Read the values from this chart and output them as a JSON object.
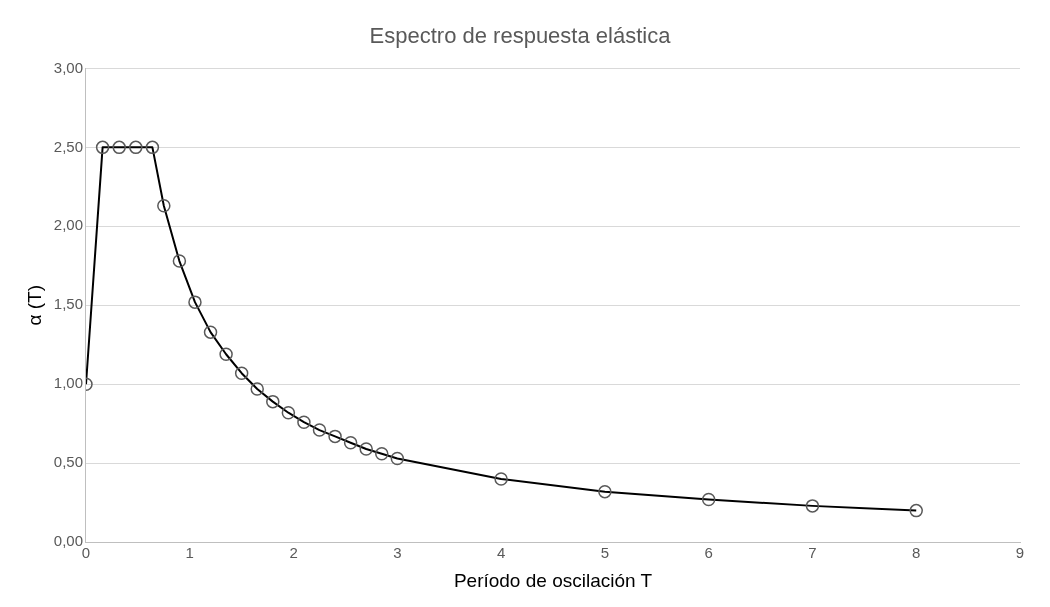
{
  "chart_data": {
    "type": "line",
    "title": "Espectro de respuesta elástica",
    "xlabel": "Período de oscilación T",
    "ylabel": "α (T)",
    "x": [
      0,
      0.16,
      0.32,
      0.48,
      0.64,
      0.75,
      0.9,
      1.05,
      1.2,
      1.35,
      1.5,
      1.65,
      1.8,
      1.95,
      2.1,
      2.25,
      2.4,
      2.55,
      2.7,
      2.85,
      3,
      4,
      5,
      6,
      7,
      8
    ],
    "series": [
      {
        "color": "#000000",
        "values": [
          1.0,
          2.5,
          2.5,
          2.5,
          2.5,
          2.13,
          1.78,
          1.52,
          1.33,
          1.19,
          1.07,
          0.97,
          0.89,
          0.82,
          0.76,
          0.71,
          0.67,
          0.63,
          0.59,
          0.56,
          0.53,
          0.4,
          0.32,
          0.27,
          0.23,
          0.2
        ]
      }
    ],
    "xlim": [
      0,
      9
    ],
    "xticks": [
      0,
      1,
      2,
      3,
      4,
      5,
      6,
      7,
      8,
      9
    ],
    "ylim": [
      0,
      3
    ],
    "yticks": [
      {
        "value": 0,
        "label": "0,00"
      },
      {
        "value": 0.5,
        "label": "0,50"
      },
      {
        "value": 1,
        "label": "1,00"
      },
      {
        "value": 1.5,
        "label": "1,50"
      },
      {
        "value": 2,
        "label": "2,00"
      },
      {
        "value": 2.5,
        "label": "2,50"
      },
      {
        "value": 3,
        "label": "3,00"
      }
    ],
    "grid": "y",
    "marker": "circle",
    "line_style": "solid"
  }
}
